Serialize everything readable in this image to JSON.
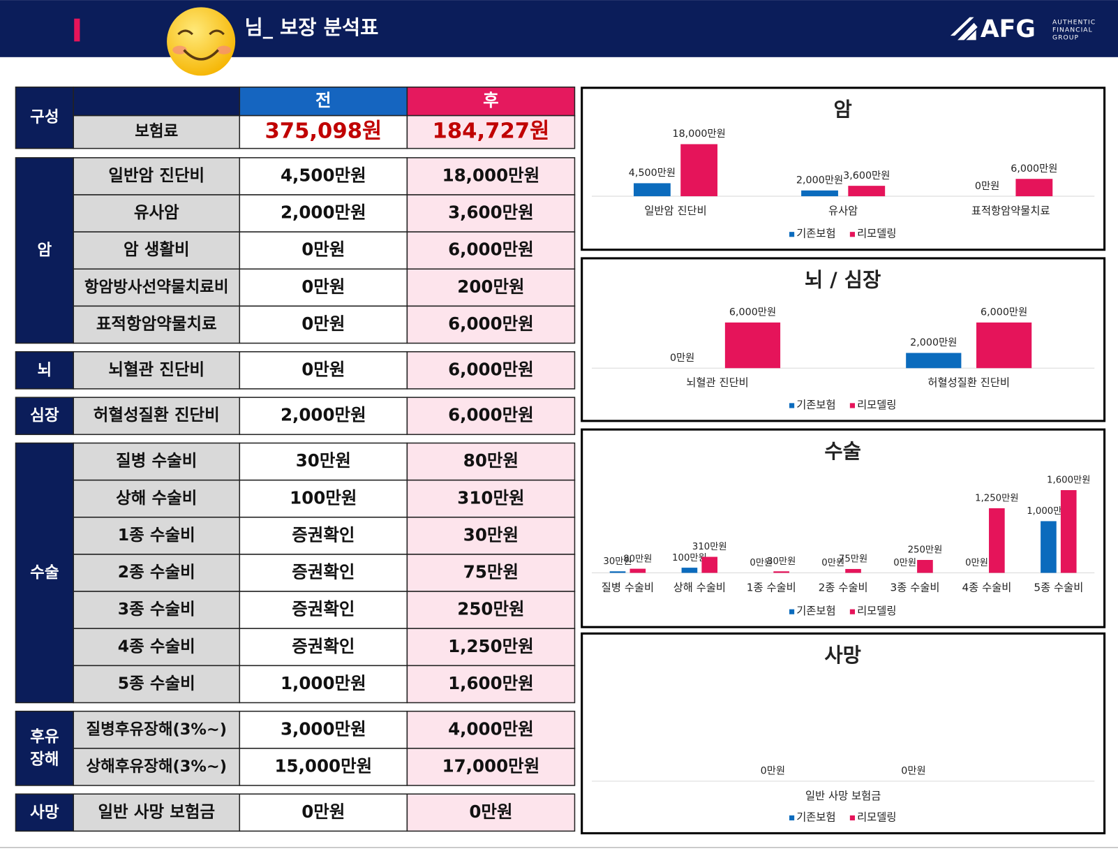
{
  "header": {
    "title": "님_ 보장 분석표",
    "logo": "AFG",
    "logo_sub": [
      "AUTHENTIC",
      "FINANCIAL",
      "GROUP"
    ]
  },
  "table": {
    "header": {
      "label": "구성",
      "before": "전",
      "after": "후"
    },
    "premium": {
      "label": "보험료",
      "before": "375,098원",
      "after": "184,727원"
    },
    "groups": [
      {
        "name": "암",
        "rows": [
          {
            "item": "일반암 진단비",
            "before": "4,500만원",
            "after": "18,000만원"
          },
          {
            "item": "유사암",
            "before": "2,000만원",
            "after": "3,600만원"
          },
          {
            "item": "암 생활비",
            "before": "0만원",
            "after": "6,000만원"
          },
          {
            "item": "항암방사선약물치료비",
            "before": "0만원",
            "after": "200만원"
          },
          {
            "item": "표적항암약물치료",
            "before": "0만원",
            "after": "6,000만원"
          }
        ]
      },
      {
        "name": "뇌",
        "rows": [
          {
            "item": "뇌혈관 진단비",
            "before": "0만원",
            "after": "6,000만원"
          }
        ]
      },
      {
        "name": "심장",
        "rows": [
          {
            "item": "허혈성질환 진단비",
            "before": "2,000만원",
            "after": "6,000만원"
          }
        ]
      },
      {
        "name": "수술",
        "rows": [
          {
            "item": "질병 수술비",
            "before": "30만원",
            "after": "80만원"
          },
          {
            "item": "상해 수술비",
            "before": "100만원",
            "after": "310만원"
          },
          {
            "item": "1종 수술비",
            "before": "증권확인",
            "after": "30만원"
          },
          {
            "item": "2종 수술비",
            "before": "증권확인",
            "after": "75만원"
          },
          {
            "item": "3종 수술비",
            "before": "증권확인",
            "after": "250만원"
          },
          {
            "item": "4종 수술비",
            "before": "증권확인",
            "after": "1,250만원"
          },
          {
            "item": "5종 수술비",
            "before": "1,000만원",
            "after": "1,600만원"
          }
        ]
      },
      {
        "name": "후유\n장해",
        "rows": [
          {
            "item": "질병후유장해(3%~)",
            "before": "3,000만원",
            "after": "4,000만원"
          },
          {
            "item": "상해후유장해(3%~)",
            "before": "15,000만원",
            "after": "17,000만원"
          }
        ]
      },
      {
        "name": "사망",
        "rows": [
          {
            "item": "일반 사망 보험금",
            "before": "0만원",
            "after": "0만원"
          }
        ]
      }
    ]
  },
  "chart_data": [
    {
      "type": "bar",
      "title": "암",
      "categories": [
        "일반암 진단비",
        "유사암",
        "표적항암약물치료"
      ],
      "series": [
        {
          "name": "기존보험",
          "color": "#0b6bbd",
          "values": [
            4500,
            2000,
            0
          ],
          "value_labels": [
            "4,500만원",
            "2,000만원",
            "0만원"
          ]
        },
        {
          "name": "리모델링",
          "color": "#e5145a",
          "values": [
            18000,
            3600,
            6000
          ],
          "value_labels": [
            "18,000만원",
            "3,600만원",
            "6,000만원"
          ]
        }
      ]
    },
    {
      "type": "bar",
      "title": "뇌 / 심장",
      "categories": [
        "뇌혈관 진단비",
        "허혈성질환 진단비"
      ],
      "series": [
        {
          "name": "기존보험",
          "color": "#0b6bbd",
          "values": [
            0,
            2000
          ],
          "value_labels": [
            "0만원",
            "2,000만원"
          ]
        },
        {
          "name": "리모델링",
          "color": "#e5145a",
          "values": [
            6000,
            6000
          ],
          "value_labels": [
            "6,000만원",
            "6,000만원"
          ]
        }
      ]
    },
    {
      "type": "bar",
      "title": "수술",
      "categories": [
        "질병 수술비",
        "상해 수술비",
        "1종 수술비",
        "2종 수술비",
        "3종 수술비",
        "4종 수술비",
        "5종 수술비"
      ],
      "series": [
        {
          "name": "기존보험",
          "color": "#0b6bbd",
          "values": [
            30,
            100,
            0,
            0,
            0,
            0,
            1000
          ],
          "value_labels": [
            "30만원",
            "100만원",
            "0만원",
            "0만원",
            "0만원",
            "0만원",
            "1,000만원"
          ]
        },
        {
          "name": "리모델링",
          "color": "#e5145a",
          "values": [
            80,
            310,
            30,
            75,
            250,
            1250,
            1600
          ],
          "value_labels": [
            "80만원",
            "310만원",
            "30만원",
            "75만원",
            "250만원",
            "1,250만원",
            "1,600만원"
          ]
        }
      ]
    },
    {
      "type": "bar",
      "title": "사망",
      "categories": [
        "일반 사망 보험금"
      ],
      "series": [
        {
          "name": "기존보험",
          "color": "#0b6bbd",
          "values": [
            0
          ],
          "value_labels": [
            "0만원"
          ]
        },
        {
          "name": "리모델링",
          "color": "#e5145a",
          "values": [
            0
          ],
          "value_labels": [
            "0만원"
          ]
        }
      ]
    }
  ]
}
